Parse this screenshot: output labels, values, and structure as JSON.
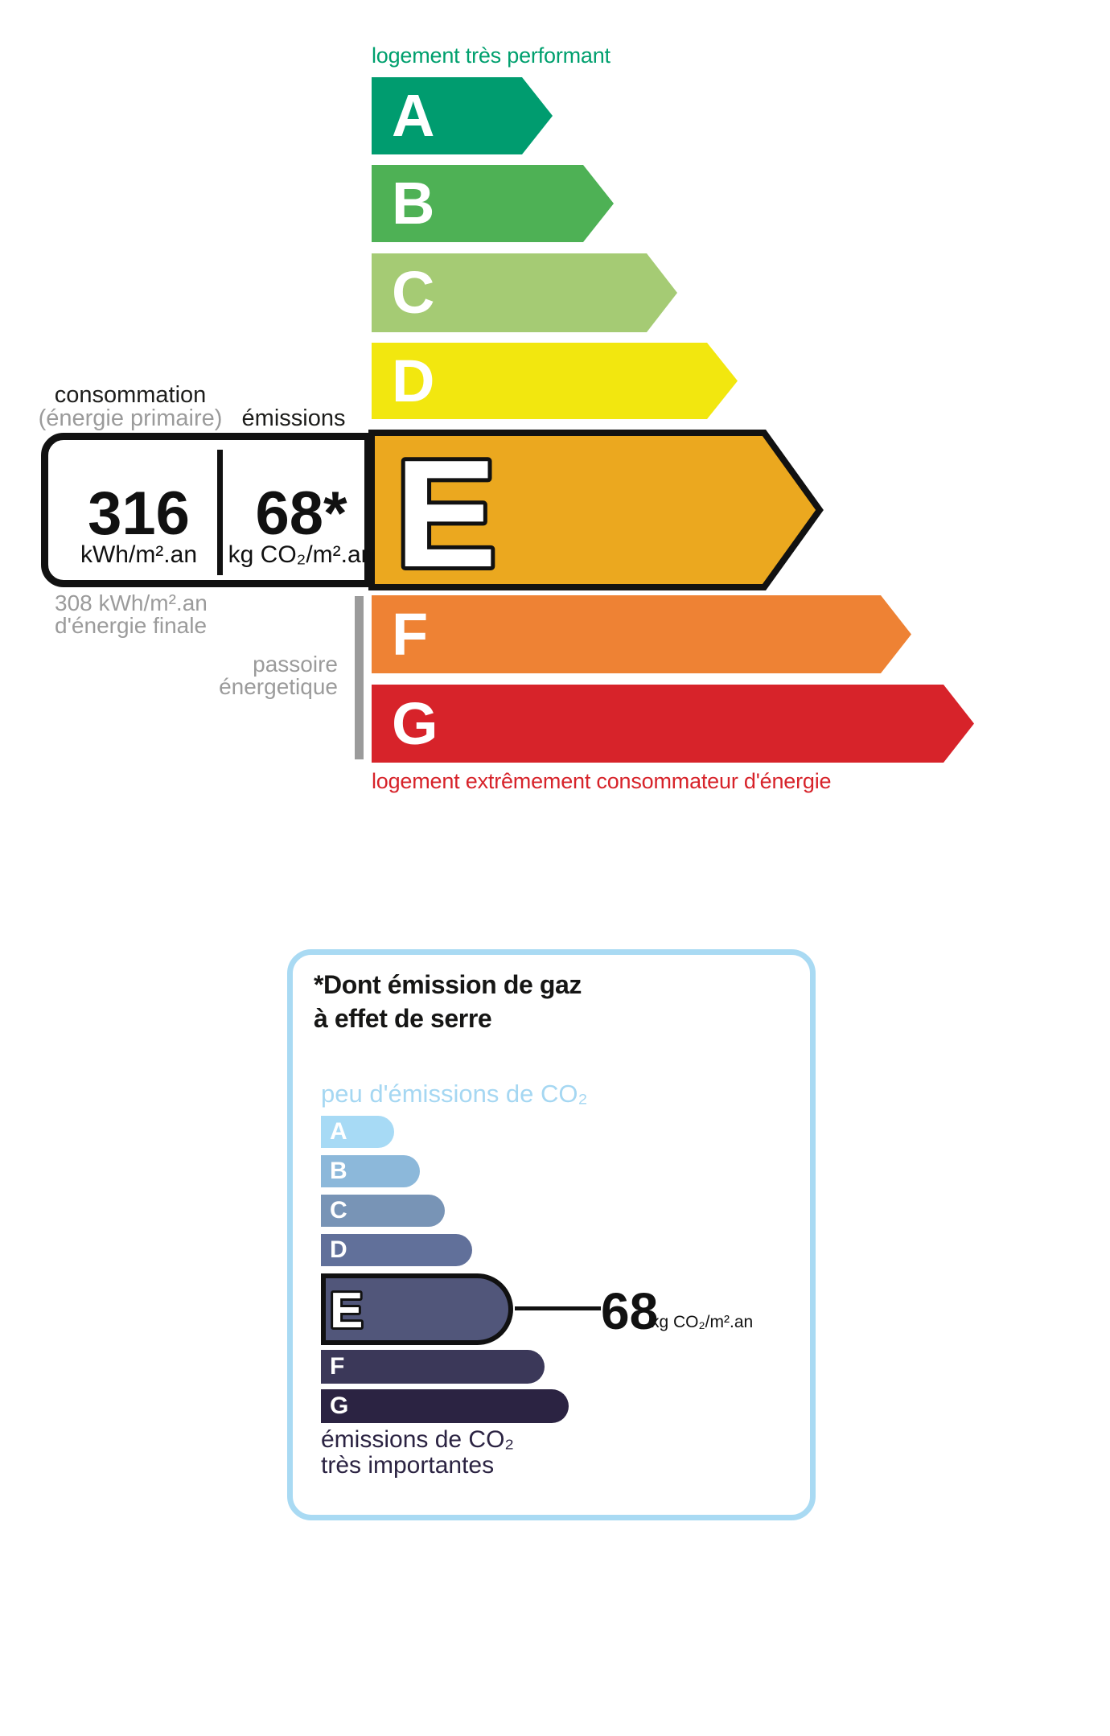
{
  "colors": {
    "label_green": "#00A06E",
    "label_red": "#D7232A",
    "gray": "#9B9B9B",
    "ink": "#111111",
    "co2_border_blue": "#A9DAF3",
    "co2_label_blue": "#A5D7F2",
    "co2_caption_dark": "#2B2342"
  },
  "energy_scale": {
    "top_label": "logement très performant",
    "bottom_label": "logement extrêmement consommateur d'énergie",
    "rating_letter": "E"
  },
  "readout": {
    "header_consumption": "consommation",
    "header_consumption_sub": "(énergie primaire)",
    "header_emissions": "émissions",
    "consumption_value": "316",
    "consumption_unit": "kWh/m².an",
    "emissions_value": "68*",
    "emissions_unit": "kg CO₂/m².an"
  },
  "annotations": {
    "final_energy_value": "308 kWh/m².an",
    "final_energy_label": "d'énergie finale",
    "sieve_line1": "passoire",
    "sieve_line2": "énergetique"
  },
  "co2_box": {
    "title_line1": "*Dont émission de gaz",
    "title_line2": "à effet de serre",
    "scale_top_label": "peu d'émissions de CO₂",
    "scale_bottom_line1": "émissions de CO₂",
    "scale_bottom_line2": "très importantes",
    "rating_letter": "E",
    "value": "68",
    "unit": "kg CO₂/m².an"
  },
  "chart_data": [
    {
      "type": "bar",
      "orientation": "horizontal",
      "title": "",
      "top_annotation": "logement très performant",
      "bottom_annotation": "logement extrêmement consommateur d'énergie",
      "categories": [
        "A",
        "B",
        "C",
        "D",
        "E",
        "F",
        "G"
      ],
      "series": [
        {
          "name": "class arrow length px",
          "values": [
            225,
            301,
            380,
            455,
            557,
            671,
            749
          ]
        }
      ],
      "colors": [
        "#009C6F",
        "#4EB155",
        "#A5CB74",
        "#F2E70F",
        "#EBA81F",
        "#EE8234",
        "#D7232A"
      ],
      "highlighted_category": "E",
      "highlight_values": {
        "consumption_kwh_m2_an": 316,
        "emissions_kg_co2_m2_an": 68,
        "final_energy_kwh_m2_an": 308
      },
      "legend_position": "none",
      "grid": false
    },
    {
      "type": "bar",
      "orientation": "horizontal",
      "title": "*Dont émission de gaz à effet de serre",
      "top_annotation": "peu d'émissions de CO₂",
      "bottom_annotation": "émissions de CO₂ très importantes",
      "categories": [
        "A",
        "B",
        "C",
        "D",
        "E",
        "F",
        "G"
      ],
      "series": [
        {
          "name": "CO₂ class bar length px",
          "values": [
            91,
            123,
            154,
            188,
            239,
            278,
            308
          ]
        }
      ],
      "colors": [
        "#A7DAF5",
        "#8CB8DA",
        "#7894B6",
        "#61709A",
        "#51567A",
        "#3B3859",
        "#2B2342"
      ],
      "highlighted_category": "E",
      "highlight_values": {
        "emissions_kg_co2_m2_an": 68
      },
      "legend_position": "none",
      "grid": false
    }
  ]
}
